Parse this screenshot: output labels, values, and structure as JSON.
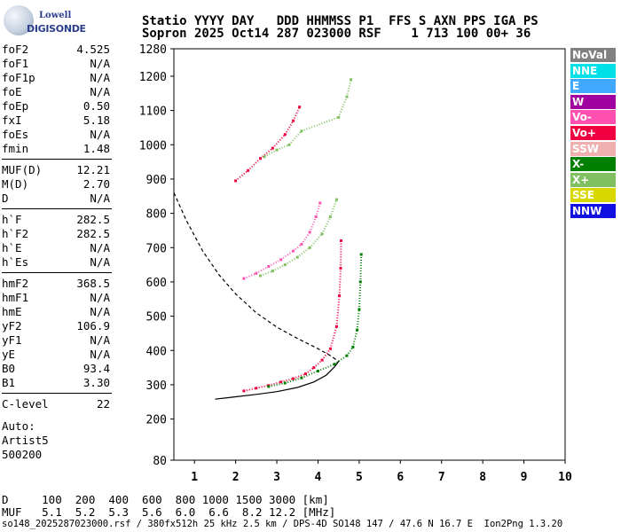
{
  "logo": {
    "line1": "Lowell",
    "line2": "DIGISONDE"
  },
  "header": {
    "line1": "Statio YYYY DAY   DDD HHMMSS P1  FFS S AXN PPS IGA PS",
    "line2": "Sopron 2025 Oct14 287 023000 RSF    1 713 100 00+ 36"
  },
  "params": {
    "group1": [
      {
        "k": "foF2",
        "v": "4.525"
      },
      {
        "k": "foF1",
        "v": "N/A"
      },
      {
        "k": "foF1p",
        "v": "N/A"
      },
      {
        "k": "foE",
        "v": "N/A"
      },
      {
        "k": "foEp",
        "v": "0.50"
      },
      {
        "k": "fxI",
        "v": "5.18"
      },
      {
        "k": "foEs",
        "v": "N/A"
      },
      {
        "k": "fmin",
        "v": "1.48"
      }
    ],
    "group2": [
      {
        "k": "MUF(D)",
        "v": "12.21"
      },
      {
        "k": "M(D)",
        "v": "2.70"
      },
      {
        "k": "D",
        "v": "N/A"
      }
    ],
    "group3": [
      {
        "k": "h`F",
        "v": "282.5"
      },
      {
        "k": "h`F2",
        "v": "282.5"
      },
      {
        "k": "h`E",
        "v": "N/A"
      },
      {
        "k": "h`Es",
        "v": "N/A"
      }
    ],
    "group4": [
      {
        "k": "hmF2",
        "v": "368.5"
      },
      {
        "k": "hmF1",
        "v": "N/A"
      },
      {
        "k": "hmE",
        "v": "N/A"
      },
      {
        "k": "yF2",
        "v": "106.9"
      },
      {
        "k": "yF1",
        "v": "N/A"
      },
      {
        "k": "yE",
        "v": "N/A"
      },
      {
        "k": "B0",
        "v": "93.4"
      },
      {
        "k": "B1",
        "v": "3.30"
      }
    ],
    "group5": [
      {
        "k": "C-level",
        "v": "22"
      }
    ]
  },
  "auto": {
    "l1": "Auto:",
    "l2": "Artist5",
    "l3": "500200"
  },
  "legend": [
    {
      "label": "NoVal",
      "color": "#808080"
    },
    {
      "label": "NNE",
      "color": "#00e0e8"
    },
    {
      "label": "E",
      "color": "#40a8ff"
    },
    {
      "label": "W",
      "color": "#a000a0"
    },
    {
      "label": "Vo-",
      "color": "#ff50b0"
    },
    {
      "label": "Vo+",
      "color": "#f00040"
    },
    {
      "label": "SSW",
      "color": "#f0b0b0"
    },
    {
      "label": "X-",
      "color": "#008000"
    },
    {
      "label": "X+",
      "color": "#80c060"
    },
    {
      "label": "SSE",
      "color": "#d8d800"
    },
    {
      "label": "NNW",
      "color": "#1010e0"
    }
  ],
  "muf_table": {
    "row1": "D     100  200  400  600  800 1000 1500 3000 [km]",
    "row2": "MUF   5.1  5.2  5.3  5.6  6.0  6.6  8.2 12.2 [MHz]"
  },
  "footer": "so148_2025287023000.rsf / 380fx512h 25 kHz 2.5 km / DPS-4D SO148 147 / 47.6 N 16.7 E  Ion2Png 1.3.20",
  "chart_data": {
    "type": "scatter",
    "xlim": [
      0.5,
      10
    ],
    "ylim": [
      80,
      1280
    ],
    "x_ticks": [
      1,
      2,
      3,
      4,
      5,
      6,
      7,
      8,
      9,
      10
    ],
    "y_ticks": [
      80,
      200,
      300,
      400,
      500,
      600,
      700,
      800,
      900,
      1000,
      1100,
      1200,
      1280
    ],
    "grid": false,
    "legend_position": "right",
    "series": [
      {
        "name": "Vo+",
        "color": "#f00040",
        "points": [
          [
            2.2,
            282
          ],
          [
            2.5,
            290
          ],
          [
            2.8,
            298
          ],
          [
            3.1,
            308
          ],
          [
            3.4,
            318
          ],
          [
            3.7,
            332
          ],
          [
            3.9,
            350
          ],
          [
            4.1,
            372
          ],
          [
            4.3,
            405
          ],
          [
            4.45,
            470
          ],
          [
            4.52,
            560
          ],
          [
            4.55,
            640
          ],
          [
            4.56,
            720
          ]
        ]
      },
      {
        "name": "Vo- 2F",
        "color": "#ff50b0",
        "points": [
          [
            2.2,
            610
          ],
          [
            2.5,
            625
          ],
          [
            2.8,
            645
          ],
          [
            3.1,
            665
          ],
          [
            3.4,
            690
          ],
          [
            3.6,
            710
          ],
          [
            3.8,
            745
          ],
          [
            3.95,
            790
          ],
          [
            4.05,
            830
          ]
        ]
      },
      {
        "name": "Vo+ 3F",
        "color": "#f00040",
        "points": [
          [
            2.0,
            895
          ],
          [
            2.3,
            925
          ],
          [
            2.6,
            960
          ],
          [
            2.9,
            990
          ],
          [
            3.2,
            1030
          ],
          [
            3.4,
            1070
          ],
          [
            3.55,
            1110
          ]
        ]
      },
      {
        "name": "X-",
        "color": "#008000",
        "points": [
          [
            2.8,
            295
          ],
          [
            3.2,
            305
          ],
          [
            3.6,
            320
          ],
          [
            4.0,
            340
          ],
          [
            4.4,
            360
          ],
          [
            4.7,
            385
          ],
          [
            4.85,
            410
          ],
          [
            4.95,
            460
          ],
          [
            5.0,
            520
          ],
          [
            5.03,
            600
          ],
          [
            5.05,
            680
          ]
        ]
      },
      {
        "name": "X+ 2F",
        "color": "#80c060",
        "points": [
          [
            2.6,
            618
          ],
          [
            2.9,
            632
          ],
          [
            3.2,
            650
          ],
          [
            3.5,
            672
          ],
          [
            3.8,
            700
          ],
          [
            4.1,
            740
          ],
          [
            4.3,
            790
          ],
          [
            4.45,
            840
          ]
        ]
      },
      {
        "name": "X+ 3F",
        "color": "#80c060",
        "points": [
          [
            2.7,
            965
          ],
          [
            3.0,
            985
          ],
          [
            3.3,
            1000
          ],
          [
            3.6,
            1040
          ],
          [
            4.5,
            1080
          ],
          [
            4.7,
            1140
          ],
          [
            4.8,
            1190
          ]
        ]
      },
      {
        "name": "profile",
        "color": "#000000",
        "line": true,
        "points": [
          [
            1.5,
            258
          ],
          [
            2.0,
            265
          ],
          [
            2.5,
            272
          ],
          [
            3.0,
            280
          ],
          [
            3.5,
            292
          ],
          [
            3.9,
            308
          ],
          [
            4.2,
            328
          ],
          [
            4.4,
            352
          ],
          [
            4.5,
            368
          ]
        ]
      },
      {
        "name": "model",
        "color": "#000000",
        "line": true,
        "dashed": true,
        "points": [
          [
            0.5,
            860
          ],
          [
            0.8,
            780
          ],
          [
            1.2,
            690
          ],
          [
            1.6,
            620
          ],
          [
            2.0,
            565
          ],
          [
            2.5,
            510
          ],
          [
            3.0,
            468
          ],
          [
            3.5,
            435
          ],
          [
            4.0,
            405
          ],
          [
            4.3,
            385
          ],
          [
            4.5,
            368
          ]
        ]
      }
    ]
  }
}
